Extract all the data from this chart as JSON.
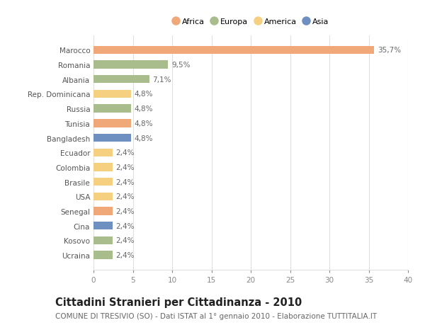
{
  "countries": [
    "Marocco",
    "Romania",
    "Albania",
    "Rep. Dominicana",
    "Russia",
    "Tunisia",
    "Bangladesh",
    "Ecuador",
    "Colombia",
    "Brasile",
    "USA",
    "Senegal",
    "Cina",
    "Kosovo",
    "Ucraina"
  ],
  "values": [
    35.7,
    9.5,
    7.1,
    4.8,
    4.8,
    4.8,
    4.8,
    2.4,
    2.4,
    2.4,
    2.4,
    2.4,
    2.4,
    2.4,
    2.4
  ],
  "labels": [
    "35,7%",
    "9,5%",
    "7,1%",
    "4,8%",
    "4,8%",
    "4,8%",
    "4,8%",
    "2,4%",
    "2,4%",
    "2,4%",
    "2,4%",
    "2,4%",
    "2,4%",
    "2,4%",
    "2,4%"
  ],
  "colors": [
    "#F0A878",
    "#A8BC8C",
    "#A8BC8C",
    "#F5D080",
    "#A8BC8C",
    "#F0A878",
    "#6E90C0",
    "#F5D080",
    "#F5D080",
    "#F5D080",
    "#F5D080",
    "#F0A878",
    "#6E90C0",
    "#A8BC8C",
    "#A8BC8C"
  ],
  "legend_labels": [
    "Africa",
    "Europa",
    "America",
    "Asia"
  ],
  "legend_colors": [
    "#F0A878",
    "#A8BC8C",
    "#F5D080",
    "#6E90C0"
  ],
  "title": "Cittadini Stranieri per Cittadinanza - 2010",
  "subtitle": "COMUNE DI TRESIVIO (SO) - Dati ISTAT al 1° gennaio 2010 - Elaborazione TUTTITALIA.IT",
  "xlim": [
    0,
    40
  ],
  "xticks": [
    0,
    5,
    10,
    15,
    20,
    25,
    30,
    35,
    40
  ],
  "bg_color": "#ffffff",
  "grid_color": "#e0e0e0",
  "bar_height": 0.55,
  "label_fontsize": 7.5,
  "tick_fontsize": 7.5,
  "title_fontsize": 10.5,
  "subtitle_fontsize": 7.5,
  "label_color": "#666666",
  "ytick_color": "#555555",
  "xtick_color": "#888888"
}
